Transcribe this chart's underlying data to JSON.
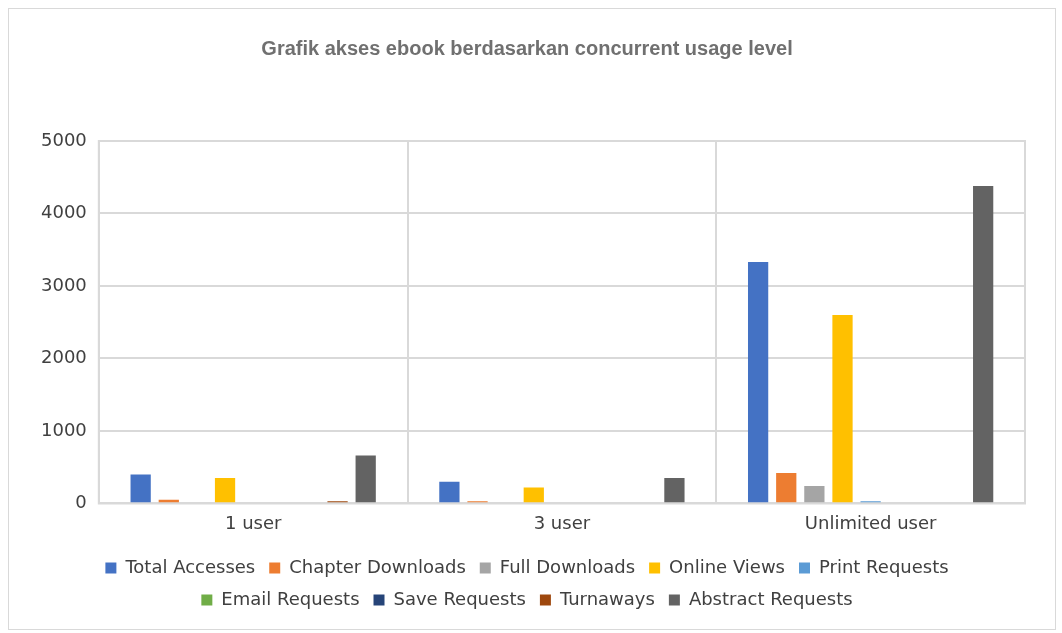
{
  "chart_data": {
    "type": "bar",
    "title": "Grafik akses ebook berdasarkan concurrent usage level",
    "categories": [
      "1 user",
      "3 user",
      "Unlimited user"
    ],
    "series": [
      {
        "name": "Total Accesses",
        "color": "#4472c4",
        "values": [
          400,
          300,
          3330
        ]
      },
      {
        "name": "Chapter Downloads",
        "color": "#ed7d31",
        "values": [
          50,
          30,
          420
        ]
      },
      {
        "name": "Full Downloads",
        "color": "#a5a5a5",
        "values": [
          0,
          0,
          240
        ]
      },
      {
        "name": "Online Views",
        "color": "#ffc000",
        "values": [
          350,
          220,
          2600
        ]
      },
      {
        "name": "Print Requests",
        "color": "#5b9bd5",
        "values": [
          0,
          0,
          30
        ]
      },
      {
        "name": "Email Requests",
        "color": "#70ad47",
        "values": [
          0,
          0,
          0
        ]
      },
      {
        "name": "Save Requests",
        "color": "#264478",
        "values": [
          0,
          0,
          0
        ]
      },
      {
        "name": "Turnaways",
        "color": "#9e480e",
        "values": [
          30,
          0,
          0
        ]
      },
      {
        "name": "Abstract Requests",
        "color": "#636363",
        "values": [
          660,
          350,
          4380
        ]
      }
    ],
    "ylim": [
      0,
      5000
    ],
    "yticks": [
      0,
      1000,
      2000,
      3000,
      4000,
      5000
    ],
    "grid": true,
    "legend": "bottom"
  }
}
